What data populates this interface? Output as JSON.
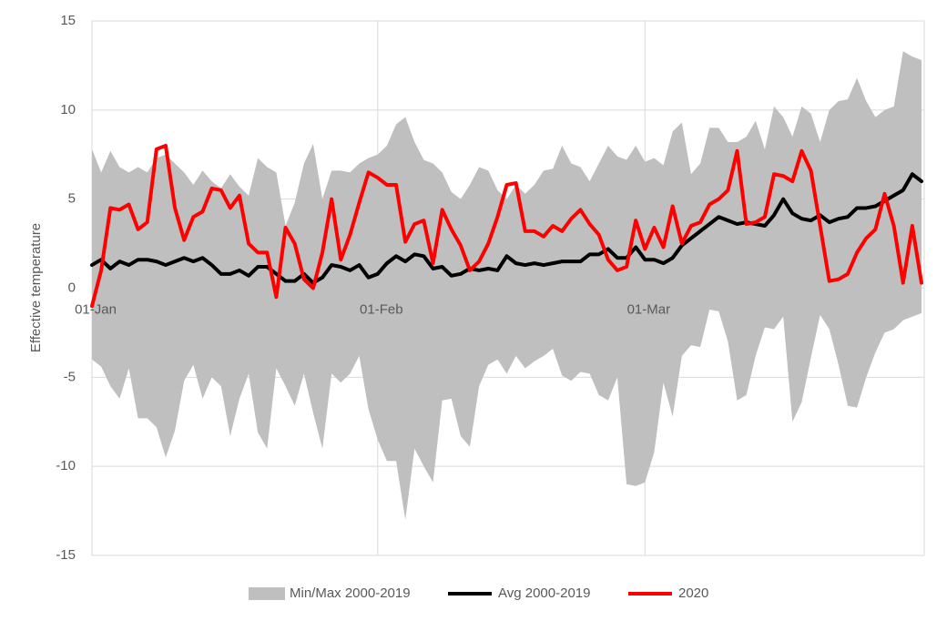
{
  "chart_data": {
    "type": "band-line",
    "y_label": "Effective temperature",
    "x": [
      0,
      1,
      2,
      3,
      4,
      5,
      6,
      7,
      8,
      9,
      10,
      11,
      12,
      13,
      14,
      15,
      16,
      17,
      18,
      19,
      20,
      21,
      22,
      23,
      24,
      25,
      26,
      27,
      28,
      29,
      30,
      31,
      32,
      33,
      34,
      35,
      36,
      37,
      38,
      39,
      40,
      41,
      42,
      43,
      44,
      45,
      46,
      47,
      48,
      49,
      50,
      51,
      52,
      53,
      54,
      55,
      56,
      57,
      58,
      59,
      60,
      61,
      62,
      63,
      64,
      65,
      66,
      67,
      68,
      69,
      70,
      71,
      72,
      73,
      74,
      75,
      76,
      77,
      78,
      79,
      80,
      81,
      82,
      83,
      84,
      85,
      86,
      87,
      88,
      89,
      90
    ],
    "xlim": [
      0,
      90
    ],
    "xticks": [
      {
        "value": 0,
        "label": "01-Jan"
      },
      {
        "value": 31,
        "label": "01-Feb"
      },
      {
        "value": 60,
        "label": "01-Mar"
      }
    ],
    "ylim": [
      -15,
      15
    ],
    "yticks": [
      -15,
      -10,
      -5,
      0,
      5,
      10,
      15
    ],
    "grid": true,
    "legend": "bottom",
    "series": [
      {
        "name": "Min/Max 2000-2019",
        "color": "#bfbfbf",
        "max": [
          7.8,
          6.5,
          7.7,
          6.8,
          6.5,
          6.8,
          6.5,
          7.3,
          7.5,
          7.0,
          6.5,
          5.8,
          6.6,
          6.0,
          5.6,
          6.4,
          5.7,
          5.2,
          7.3,
          6.8,
          6.5,
          3.5,
          4.8,
          7.0,
          8.1,
          5.0,
          6.6,
          6.6,
          6.5,
          7.0,
          7.3,
          7.5,
          8.0,
          9.2,
          9.6,
          8.2,
          7.2,
          7.0,
          6.5,
          5.4,
          5.0,
          5.8,
          6.8,
          6.6,
          5.5,
          5.0,
          5.8,
          5.3,
          5.8,
          6.6,
          6.7,
          8.0,
          7.0,
          6.8,
          6.0,
          7.0,
          8.0,
          7.4,
          7.2,
          8.0,
          7.1,
          7.3,
          6.9,
          8.8,
          9.3,
          6.4,
          7.0,
          9.0,
          9.0,
          8.2,
          8.2,
          8.5,
          9.4,
          7.8,
          10.2,
          9.6,
          8.5,
          10.2,
          9.8,
          8.2,
          10.0,
          10.5,
          10.6,
          11.8,
          10.5,
          9.6,
          10.0,
          10.2,
          13.3,
          13.0,
          12.8
        ],
        "min": [
          -4.0,
          -4.4,
          -5.5,
          -6.2,
          -4.5,
          -7.3,
          -7.3,
          -7.8,
          -9.5,
          -8.0,
          -5.2,
          -4.3,
          -6.2,
          -5.0,
          -5.5,
          -8.3,
          -6.2,
          -4.8,
          -8.1,
          -9.0,
          -4.5,
          -5.5,
          -6.6,
          -4.8,
          -7.0,
          -9.0,
          -4.8,
          -5.3,
          -4.8,
          -3.8,
          -6.8,
          -8.5,
          -9.7,
          -9.7,
          -13.0,
          -9.0,
          -10.0,
          -10.9,
          -6.3,
          -6.2,
          -8.3,
          -8.9,
          -5.5,
          -4.3,
          -4.0,
          -4.8,
          -3.8,
          -4.5,
          -4.1,
          -3.8,
          -3.4,
          -4.9,
          -5.2,
          -4.7,
          -4.8,
          -6.0,
          -6.3,
          -5.0,
          -11.0,
          -11.1,
          -10.9,
          -9.2,
          -5.3,
          -7.2,
          -3.8,
          -3.2,
          -3.3,
          -1.2,
          -1.3,
          -3.0,
          -6.3,
          -6.0,
          -3.8,
          -2.2,
          -2.3,
          -1.6,
          -7.5,
          -6.4,
          -3.9,
          -1.5,
          -2.3,
          -4.3,
          -6.6,
          -6.7,
          -5.0,
          -3.6,
          -2.5,
          -2.3,
          -1.8,
          -1.6,
          -1.4
        ]
      },
      {
        "name": "Avg 2000-2019",
        "color": "#000000",
        "values": [
          1.3,
          1.6,
          1.1,
          1.5,
          1.3,
          1.6,
          1.6,
          1.5,
          1.3,
          1.5,
          1.7,
          1.5,
          1.7,
          1.3,
          0.8,
          0.8,
          1.0,
          0.7,
          1.2,
          1.2,
          0.8,
          0.4,
          0.4,
          0.8,
          0.3,
          0.6,
          1.3,
          1.2,
          1.0,
          1.3,
          0.6,
          0.8,
          1.4,
          1.8,
          1.5,
          1.9,
          1.8,
          1.1,
          1.2,
          0.7,
          0.8,
          1.1,
          1.0,
          1.1,
          1.0,
          1.8,
          1.4,
          1.3,
          1.4,
          1.3,
          1.4,
          1.5,
          1.5,
          1.5,
          1.9,
          1.9,
          2.2,
          1.7,
          1.7,
          2.3,
          1.6,
          1.6,
          1.4,
          1.7,
          2.4,
          2.8,
          3.2,
          3.6,
          4.0,
          3.8,
          3.6,
          3.7,
          3.6,
          3.5,
          4.1,
          5.0,
          4.2,
          3.9,
          3.8,
          4.1,
          3.7,
          3.9,
          4.0,
          4.5,
          4.5,
          4.6,
          4.9,
          5.2,
          5.5,
          6.4,
          6.0
        ]
      },
      {
        "name": "2020",
        "color": "#ff0000",
        "values": [
          -1.0,
          1.0,
          4.5,
          4.4,
          4.7,
          3.3,
          3.7,
          7.8,
          8.0,
          4.5,
          2.7,
          4.0,
          4.3,
          5.6,
          5.5,
          4.5,
          5.2,
          2.5,
          2.0,
          2.0,
          -0.5,
          3.4,
          2.5,
          0.5,
          0.0,
          2.0,
          5.0,
          1.6,
          3.0,
          4.8,
          6.5,
          6.2,
          5.8,
          5.8,
          2.6,
          3.6,
          3.8,
          1.4,
          4.4,
          3.3,
          2.4,
          1.0,
          1.5,
          2.5,
          4.0,
          5.8,
          5.9,
          3.2,
          3.2,
          2.9,
          3.5,
          3.2,
          3.9,
          4.4,
          3.6,
          3.0,
          1.6,
          1.0,
          1.2,
          3.8,
          2.2,
          3.4,
          2.3,
          4.6,
          2.5,
          3.5,
          3.7,
          4.7,
          5.0,
          5.5,
          7.7,
          3.6,
          3.7,
          4.0,
          6.4,
          6.3,
          6.0,
          7.7,
          6.6,
          3.5,
          0.4,
          0.5,
          0.8,
          2.0,
          2.8,
          3.3,
          5.3,
          3.5,
          0.3,
          3.5,
          0.3
        ]
      }
    ]
  }
}
